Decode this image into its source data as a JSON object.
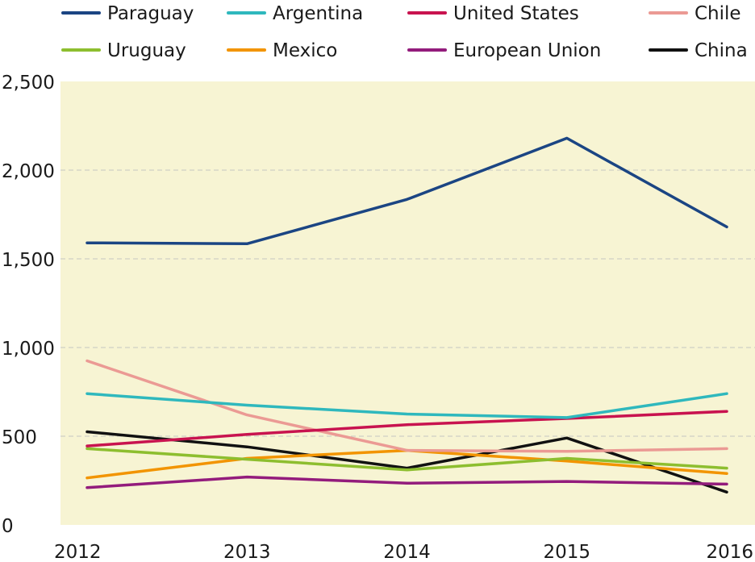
{
  "chart_data": {
    "type": "line",
    "title": "",
    "xlabel": "",
    "ylabel": "",
    "x": [
      "2012",
      "2013",
      "2014",
      "2015",
      "2016"
    ],
    "ylim": [
      0,
      2500
    ],
    "yticks": [
      0,
      500,
      1000,
      1500,
      2000,
      2500
    ],
    "ytick_labels": [
      "0",
      "500",
      "1,000",
      "1,500",
      "2,000",
      "2,500"
    ],
    "grid": "horizontal dashed",
    "legend_position": "top",
    "background": "#f7f4d3",
    "series": [
      {
        "name": "Paraguay",
        "color": "#1b4583",
        "values": [
          1590,
          1585,
          1835,
          2180,
          1680
        ]
      },
      {
        "name": "Argentina",
        "color": "#2fb8bd",
        "values": [
          740,
          675,
          625,
          605,
          740
        ]
      },
      {
        "name": "United States",
        "color": "#c8134f",
        "values": [
          445,
          510,
          565,
          600,
          640
        ]
      },
      {
        "name": "Chile",
        "color": "#eb9a94",
        "values": [
          925,
          620,
          420,
          415,
          430
        ]
      },
      {
        "name": "Uruguay",
        "color": "#8dbe2f",
        "values": [
          430,
          370,
          310,
          375,
          320
        ]
      },
      {
        "name": "Mexico",
        "color": "#f29400",
        "values": [
          265,
          375,
          420,
          360,
          290
        ]
      },
      {
        "name": "European Union",
        "color": "#931c7c",
        "values": [
          210,
          270,
          235,
          245,
          230
        ]
      },
      {
        "name": "China",
        "color": "#111111",
        "values": [
          525,
          440,
          320,
          490,
          185
        ]
      }
    ]
  }
}
